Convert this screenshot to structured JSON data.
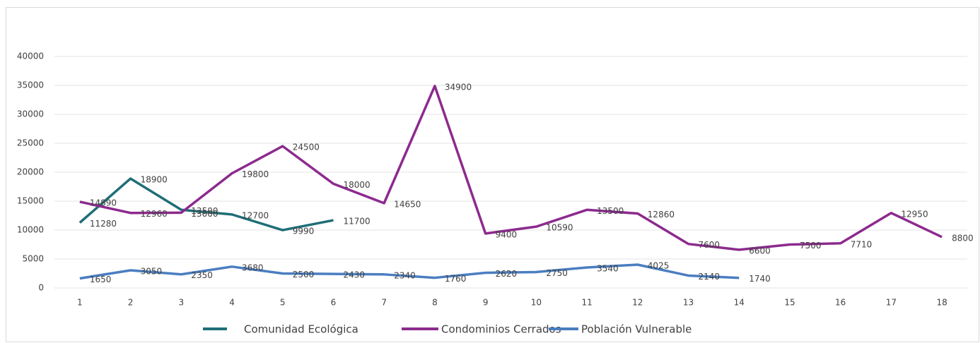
{
  "chart_data": {
    "type": "line",
    "categories": [
      "1",
      "2",
      "3",
      "4",
      "5",
      "6",
      "7",
      "8",
      "9",
      "10",
      "11",
      "12",
      "13",
      "14",
      "15",
      "16",
      "17",
      "18"
    ],
    "ylim": [
      0,
      40000
    ],
    "yticks": [
      0,
      5000,
      10000,
      15000,
      20000,
      25000,
      30000,
      35000,
      40000
    ],
    "grid": true,
    "legend": "bottom",
    "series": [
      {
        "name": "Comunidad Ecológica",
        "color": "#1f6e77",
        "values": [
          11280,
          18900,
          13500,
          12700,
          9990,
          11700,
          null,
          null,
          null,
          null,
          null,
          null,
          null,
          null,
          null,
          null,
          null,
          null
        ]
      },
      {
        "name": "Condominios Cerrados",
        "color": "#8c2a8e",
        "values": [
          14890,
          12960,
          13000,
          19800,
          24500,
          18000,
          14650,
          34900,
          9400,
          10590,
          13500,
          12860,
          7600,
          6600,
          7500,
          7710,
          12950,
          8800
        ]
      },
      {
        "name": "Población Vulnerable",
        "color": "#4a7ec0",
        "values": [
          1650,
          3050,
          2350,
          3680,
          2500,
          2430,
          2340,
          1760,
          2620,
          2750,
          3540,
          4025,
          2140,
          1740,
          null,
          null,
          null,
          null
        ]
      }
    ]
  }
}
